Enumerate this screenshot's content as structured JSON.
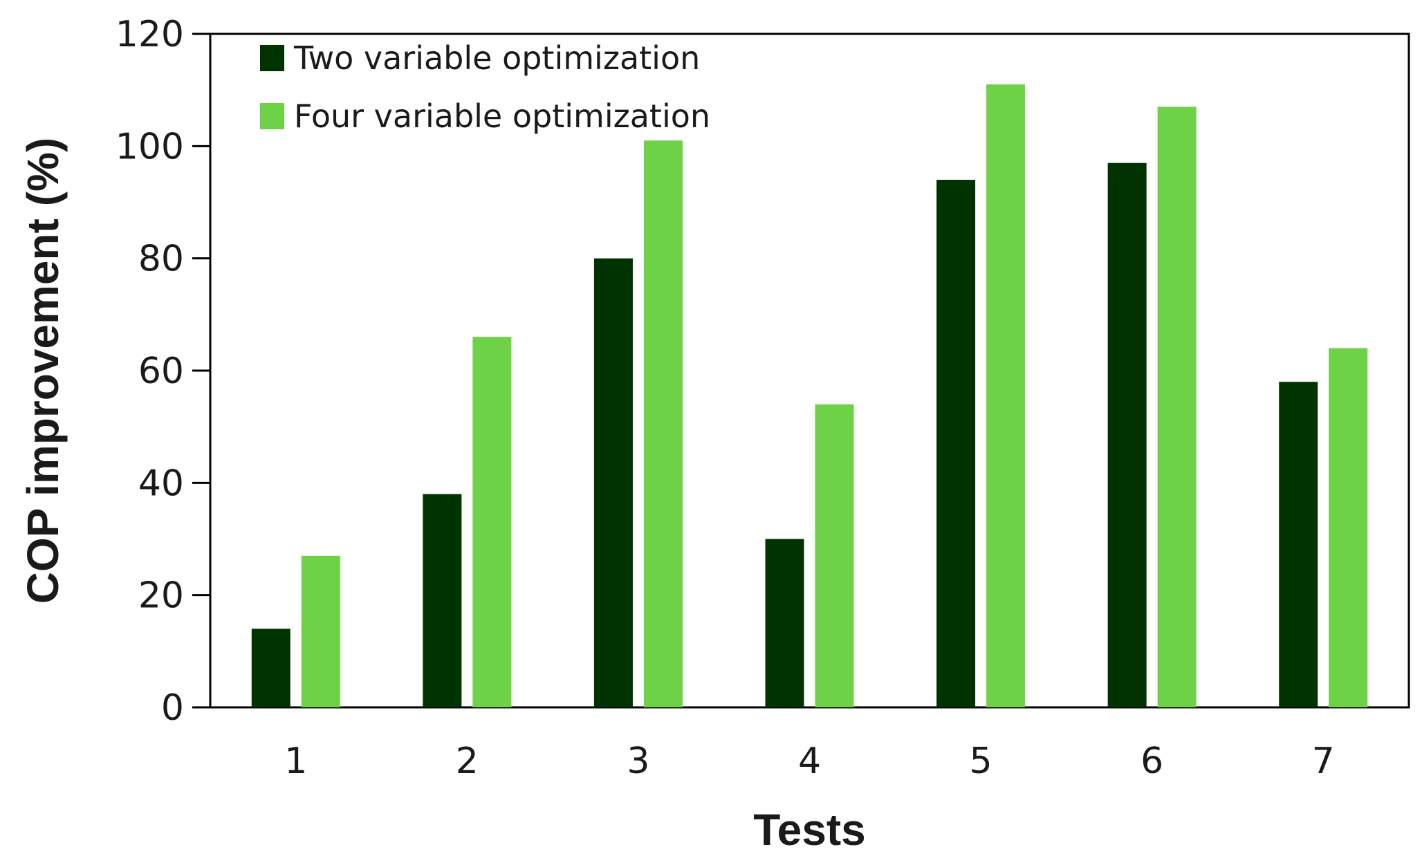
{
  "chart_data": {
    "type": "bar",
    "title": "",
    "xlabel": "Tests",
    "ylabel": "COP improvement (%)",
    "categories": [
      "1",
      "2",
      "3",
      "4",
      "5",
      "6",
      "7"
    ],
    "series": [
      {
        "name": "Two variable optimization",
        "color": "#013301",
        "values": [
          14,
          38,
          80,
          30,
          94,
          97,
          58
        ]
      },
      {
        "name": "Four variable optimization",
        "color": "#6dd246",
        "values": [
          27,
          66,
          101,
          54,
          111,
          107,
          64
        ]
      }
    ],
    "ylim": [
      0,
      120
    ],
    "yticks": [
      "0",
      "20",
      "40",
      "60",
      "80",
      "100",
      "120"
    ],
    "grid": false,
    "legend_position": "top-left"
  }
}
